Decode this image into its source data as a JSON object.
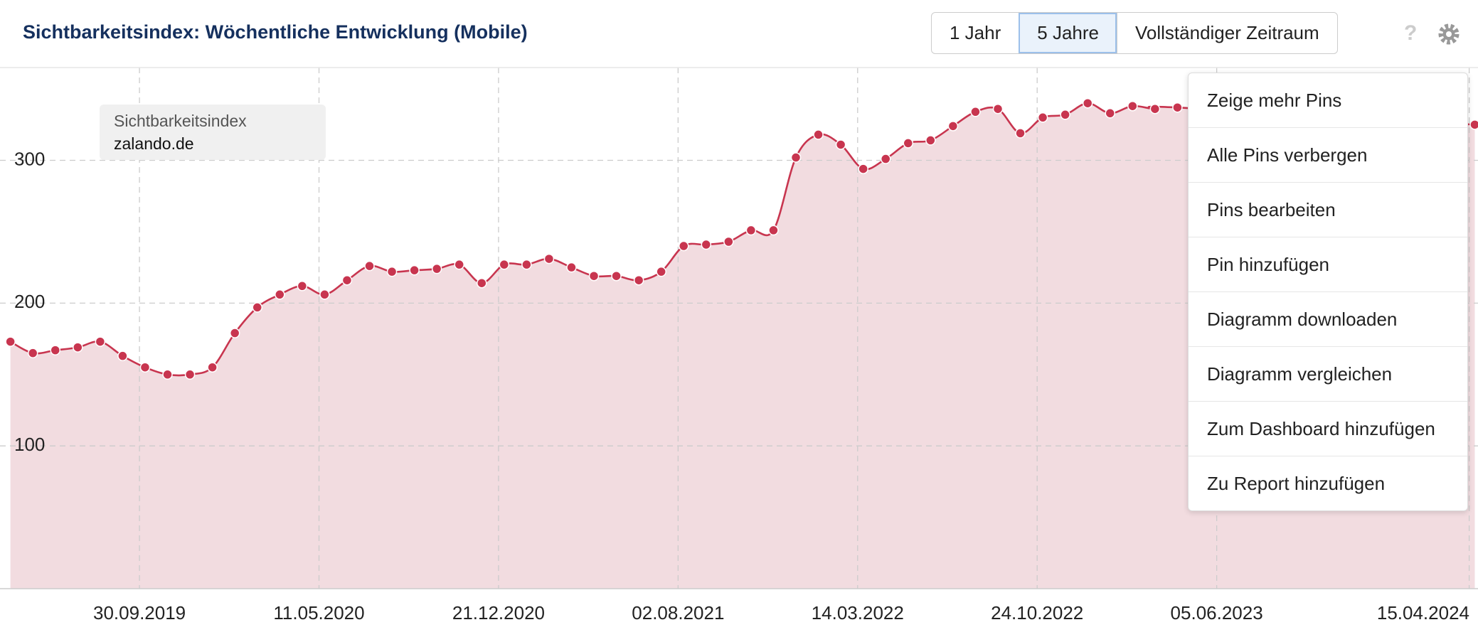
{
  "header": {
    "title": "Sichtbarkeitsindex: Wöchentliche Entwicklung (Mobile)",
    "buttons": [
      "1 Jahr",
      "5 Jahre",
      "Vollständiger Zeitraum"
    ],
    "active_button": 1,
    "help": "?"
  },
  "menu": {
    "items": [
      "Zeige mehr Pins",
      "Alle Pins verbergen",
      "Pins bearbeiten",
      "Pin hinzufügen",
      "Diagramm downloaden",
      "Diagramm vergleichen",
      "Zum Dashboard hinzufügen",
      "Zu Report hinzufügen"
    ]
  },
  "chart_data": {
    "type": "area",
    "legend_title": "Sichtbarkeitsindex",
    "x": [
      "2019-04-22",
      "2019-05-20",
      "2019-06-17",
      "2019-07-15",
      "2019-08-12",
      "2019-09-09",
      "2019-10-07",
      "2019-11-04",
      "2019-12-02",
      "2019-12-30",
      "2020-01-27",
      "2020-02-24",
      "2020-03-23",
      "2020-04-20",
      "2020-05-18",
      "2020-06-15",
      "2020-07-13",
      "2020-08-10",
      "2020-09-07",
      "2020-10-05",
      "2020-11-02",
      "2020-11-30",
      "2020-12-28",
      "2021-01-25",
      "2021-02-22",
      "2021-03-22",
      "2021-04-19",
      "2021-05-17",
      "2021-06-14",
      "2021-07-12",
      "2021-08-09",
      "2021-09-06",
      "2021-10-04",
      "2021-11-01",
      "2021-11-29",
      "2021-12-27",
      "2022-01-24",
      "2022-02-21",
      "2022-03-21",
      "2022-04-18",
      "2022-05-16",
      "2022-06-13",
      "2022-07-11",
      "2022-08-08",
      "2022-09-05",
      "2022-10-03",
      "2022-10-31",
      "2022-11-28",
      "2022-12-26",
      "2023-01-23",
      "2023-02-20",
      "2023-03-20",
      "2023-04-17",
      "2024-04-22"
    ],
    "series": [
      {
        "name": "zalando.de",
        "color": "#c8354f",
        "fill": "#f2dce0",
        "values": [
          173,
          165,
          167,
          169,
          173,
          163,
          155,
          150,
          150,
          155,
          179,
          197,
          206,
          212,
          206,
          216,
          226,
          222,
          223,
          224,
          227,
          214,
          227,
          227,
          231,
          225,
          219,
          219,
          216,
          222,
          240,
          241,
          243,
          251,
          251,
          302,
          318,
          311,
          294,
          301,
          312,
          314,
          324,
          334,
          336,
          319,
          330,
          332,
          340,
          333,
          338,
          336,
          337,
          325
        ]
      }
    ],
    "xlim": [
      "2019-04-09",
      "2024-04-26"
    ],
    "xticks": [
      {
        "value": "2019-09-30",
        "label": "30.09.2019"
      },
      {
        "value": "2020-05-11",
        "label": "11.05.2020"
      },
      {
        "value": "2020-12-21",
        "label": "21.12.2020"
      },
      {
        "value": "2021-08-02",
        "label": "02.08.2021"
      },
      {
        "value": "2022-03-14",
        "label": "14.03.2022"
      },
      {
        "value": "2022-10-24",
        "label": "24.10.2022"
      },
      {
        "value": "2023-06-05",
        "label": "05.06.2023"
      },
      {
        "value": "2024-04-15",
        "label": "15.04.2024"
      }
    ],
    "ylim": [
      0,
      365
    ],
    "yticks": [
      100,
      200,
      300
    ],
    "grid": true
  }
}
